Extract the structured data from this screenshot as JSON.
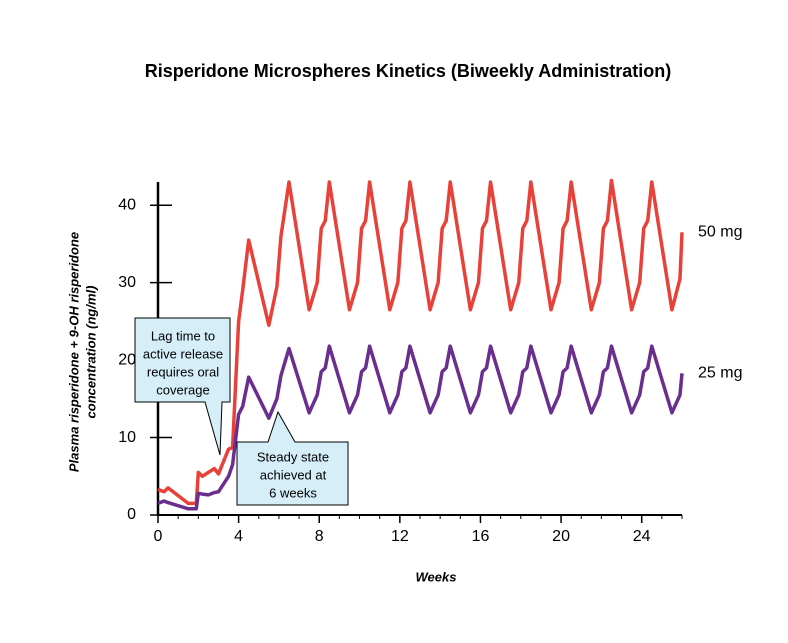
{
  "chart_data": {
    "type": "line",
    "title": "Risperidone Microspheres Kinetics (Biweekly Administration)",
    "x_label": "Weeks",
    "y_label": [
      "Plasma risperidone + 9-OH risperidone",
      "concentration (ng/ml)"
    ],
    "x": [
      0,
      0.3,
      0.5,
      1,
      1.5,
      1.9,
      2,
      2.2,
      2.5,
      2.8,
      3,
      3.5,
      3.7,
      4,
      4.2,
      4.5,
      5.5,
      5.9,
      6.1,
      6.5,
      7.5,
      7.9,
      8.1,
      8.3,
      8.5,
      9.5,
      9.9,
      10.1,
      10.3,
      10.5,
      11.5,
      11.9,
      12.1,
      12.3,
      12.5,
      13.5,
      13.9,
      14.1,
      14.3,
      14.5,
      15.5,
      15.9,
      16.1,
      16.3,
      16.5,
      17.5,
      17.9,
      18.1,
      18.3,
      18.5,
      19.5,
      19.9,
      20.1,
      20.3,
      20.5,
      21.5,
      21.9,
      22.1,
      22.3,
      22.5,
      23.5,
      23.9,
      24.1,
      24.3,
      24.5,
      25.5,
      25.9,
      26
    ],
    "series": [
      {
        "name": "50 mg",
        "color": "#e8413a",
        "values": [
          3.3,
          3.0,
          3.5,
          2.5,
          1.5,
          1.5,
          5.5,
          5.0,
          5.5,
          6.0,
          5.3,
          8.5,
          8.7,
          25,
          29,
          35.5,
          24.5,
          29.5,
          36,
          43,
          26.5,
          30,
          37,
          38,
          43,
          26.5,
          30,
          37,
          38,
          43,
          26.5,
          30,
          37,
          38,
          43,
          26.5,
          30,
          37,
          38,
          43,
          26.5,
          30,
          37,
          38,
          43,
          26.5,
          30,
          37,
          38,
          43,
          26.5,
          30,
          37,
          38,
          43,
          26.5,
          30,
          37,
          38,
          43.2,
          26.5,
          30,
          37,
          38,
          43,
          26.5,
          30.5,
          36.5
        ]
      },
      {
        "name": "25 mg",
        "color": "#6a2e8e",
        "values": [
          1.5,
          1.8,
          1.6,
          1.2,
          0.8,
          0.8,
          2.8,
          2.7,
          2.6,
          2.9,
          3.0,
          5.0,
          6.5,
          13,
          14,
          17.8,
          12.5,
          15,
          18,
          21.5,
          13.2,
          15.5,
          18.5,
          19,
          21.8,
          13.2,
          15.5,
          18.5,
          19,
          21.8,
          13.2,
          15.5,
          18.5,
          19,
          21.8,
          13.2,
          15.5,
          18.5,
          19,
          21.8,
          13.2,
          15.5,
          18.5,
          19,
          21.8,
          13.2,
          15.5,
          18.5,
          19,
          21.8,
          13.2,
          15.5,
          18.5,
          19,
          21.8,
          13.2,
          15.5,
          18.5,
          19,
          21.8,
          13.2,
          15.5,
          18.5,
          19,
          21.8,
          13.2,
          15.5,
          18.3
        ]
      }
    ],
    "xlim": [
      0,
      26
    ],
    "xticks": [
      0,
      4,
      8,
      12,
      16,
      20,
      24
    ],
    "ylim": [
      0,
      43
    ],
    "yticks": [
      0,
      10,
      20,
      30,
      40
    ],
    "annotations": [
      {
        "lines": [
          "Lag time to",
          "active release",
          "requires oral",
          "coverage"
        ]
      },
      {
        "lines": [
          "Steady state",
          "achieved at",
          "6 weeks"
        ]
      }
    ]
  }
}
